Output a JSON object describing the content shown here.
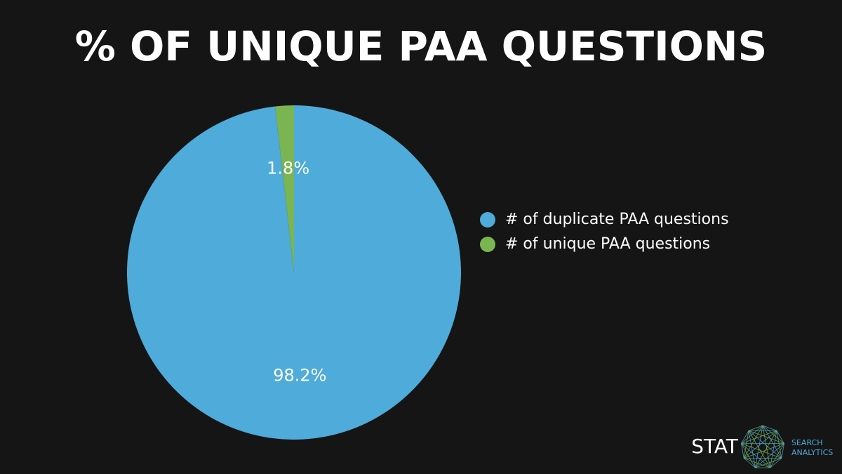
{
  "chart_data": {
    "type": "pie",
    "title": "% OF UNIQUE PAA QUESTIONS",
    "categories": [
      "# of duplicate PAA questions",
      "# of unique PAA questions"
    ],
    "values": [
      98.2,
      1.8
    ],
    "value_labels": [
      "98.2%",
      "1.8%"
    ],
    "colors": [
      "#4eabda",
      "#7ab552"
    ],
    "legend": "right"
  },
  "logo": {
    "name": "STAT",
    "tagline": [
      "SEARCH",
      "ANALYTICS"
    ]
  }
}
